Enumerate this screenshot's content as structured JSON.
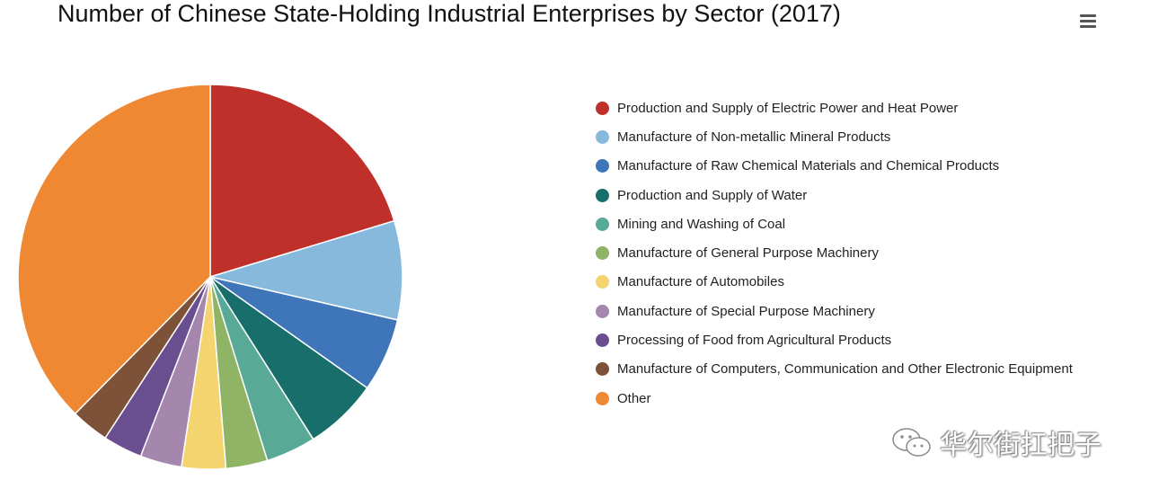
{
  "chart_data": {
    "type": "pie",
    "title": "Number of Chinese State-Holding Industrial Enterprises by Sector (2017)",
    "legend_position": "right",
    "slices": [
      {
        "label": "Production and Supply of Electric Power and Heat Power",
        "value": 20.3,
        "color": "#c0302a"
      },
      {
        "label": "Manufacture of Non-metallic Mineral Products",
        "value": 8.3,
        "color": "#86b9dc"
      },
      {
        "label": "Manufacture of Raw Chemical Materials and Chemical Products",
        "value": 6.2,
        "color": "#3f76b9"
      },
      {
        "label": "Production and Supply of Water",
        "value": 6.2,
        "color": "#176e6a"
      },
      {
        "label": "Mining and Washing of Coal",
        "value": 4.2,
        "color": "#58a996"
      },
      {
        "label": "Manufacture of General Purpose Machinery",
        "value": 3.5,
        "color": "#8fb466"
      },
      {
        "label": "Manufacture of Automobiles",
        "value": 3.7,
        "color": "#f4d46e"
      },
      {
        "label": "Manufacture of Special Purpose Machinery",
        "value": 3.5,
        "color": "#a587ad"
      },
      {
        "label": "Processing of Food from Agricultural Products",
        "value": 3.3,
        "color": "#6a4f90"
      },
      {
        "label": "Manufacture of Computers, Communication and Other Electronic Equipment",
        "value": 3.2,
        "color": "#7d5239"
      },
      {
        "label": "Other",
        "value": 37.6,
        "color": "#ef8833"
      }
    ]
  },
  "watermark": {
    "text": "华尔街扛把子"
  },
  "menu": {
    "icon": "hamburger-menu-icon"
  }
}
